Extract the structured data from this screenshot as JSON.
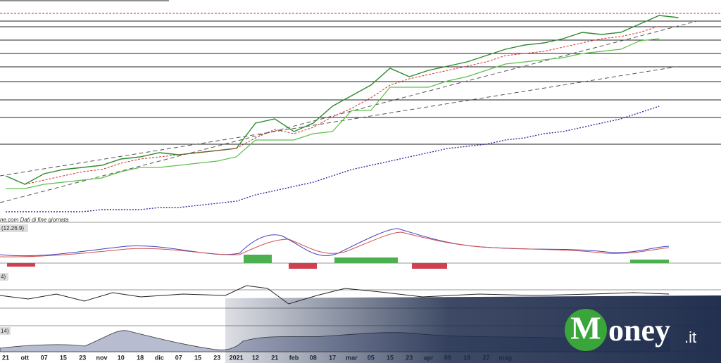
{
  "chart_data": {
    "type": "line",
    "categories": [
      "21",
      "ott",
      "07",
      "15",
      "23",
      "nov",
      "10",
      "18",
      "dic",
      "07",
      "15",
      "23",
      "2021",
      "12",
      "21",
      "feb",
      "08",
      "17",
      "mar",
      "05",
      "15",
      "23",
      "apr",
      "09",
      "18",
      "27",
      "mag",
      null,
      null,
      null,
      null,
      null,
      null,
      null,
      null,
      null
    ],
    "series": [
      {
        "color": "#2e8b2e",
        "values": [
          20,
          16,
          21,
          23,
          24,
          25,
          28,
          29,
          31,
          30,
          31,
          32,
          33,
          45,
          47,
          41,
          45,
          53,
          58,
          63,
          71,
          67,
          70,
          72,
          74,
          77,
          80,
          82,
          83,
          85,
          88,
          87,
          88,
          92,
          96,
          95
        ]
      },
      {
        "color": "#d03030",
        "values": [
          null,
          16,
          18,
          20,
          22,
          23,
          26,
          28,
          29,
          30,
          31,
          32,
          33,
          38,
          42,
          40,
          43,
          48,
          52,
          57,
          63,
          66,
          68,
          70,
          72,
          74,
          77,
          78,
          79,
          81,
          83,
          85,
          86,
          88,
          91,
          null
        ]
      },
      {
        "color": "#5cc04a",
        "values": [
          14,
          14,
          16,
          17,
          18,
          19,
          22,
          24,
          24,
          25,
          26,
          27,
          29,
          37,
          37,
          37,
          40,
          41,
          51,
          51,
          62,
          62,
          62,
          65,
          67,
          70,
          73,
          74,
          75,
          76,
          78,
          79,
          80,
          84,
          85,
          null
        ]
      },
      {
        "color": "#3030a0",
        "values": [
          3,
          3,
          3,
          3,
          3,
          4,
          4,
          4,
          5,
          5,
          6,
          7,
          8,
          11,
          13,
          15,
          17,
          20,
          23,
          25,
          27,
          29,
          31,
          33,
          34,
          35,
          37,
          38,
          40,
          41,
          43,
          45,
          47,
          50,
          53,
          null
        ]
      }
    ],
    "ylim": [
      0,
      100
    ],
    "annotations": [
      "ne.com Dati di fine giornata",
      "(12.26.9)",
      "4)",
      "14)"
    ]
  },
  "logo": {
    "initial": "M",
    "rest": "oney",
    "suffix": ".it"
  }
}
